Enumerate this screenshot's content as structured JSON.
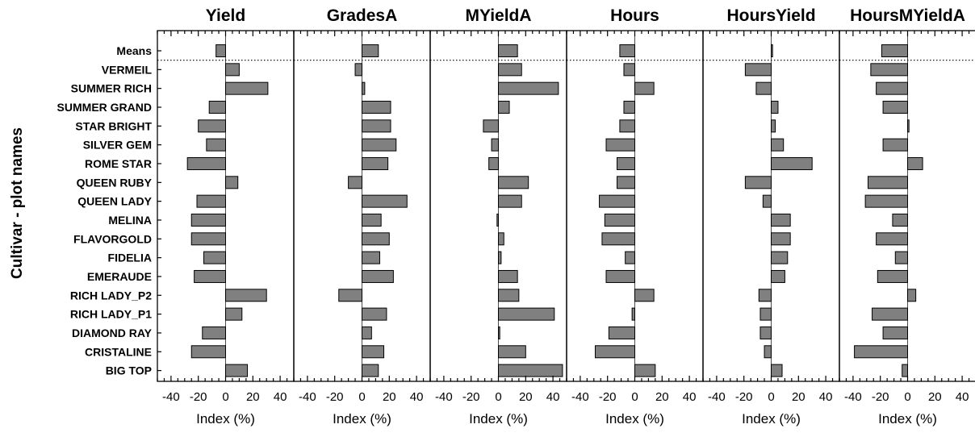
{
  "chart_data": {
    "type": "bar",
    "orientation": "horizontal",
    "ylabel": "Cultivar - plot names",
    "categories": [
      "Means",
      "VERMEIL",
      "SUMMER RICH",
      "SUMMER GRAND",
      "STAR BRIGHT",
      "SILVER GEM",
      "ROME STAR",
      "QUEEN RUBY",
      "QUEEN LADY",
      "MELINA",
      "FLAVORGOLD",
      "FIDELIA",
      "EMERAUDE",
      "RICH LADY_P2",
      "RICH LADY_P1",
      "DIAMOND RAY",
      "CRISTALINE",
      "BIG TOP"
    ],
    "xlim": [
      -50,
      50
    ],
    "xticks": [
      -40,
      -20,
      0,
      20,
      40
    ],
    "xtick_labels": [
      "-40",
      "-20",
      "0",
      "20",
      "40"
    ],
    "bar_color": "#808080",
    "panels": [
      {
        "title": "Yield",
        "xlabel": "Index (%)",
        "values": [
          -7,
          10,
          31,
          -12,
          -20,
          -14,
          -28,
          9,
          -21,
          -25,
          -25,
          -16,
          -23,
          30,
          12,
          -17,
          -25,
          16
        ]
      },
      {
        "title": "GradesA",
        "xlabel": "Index (%)",
        "values": [
          12,
          -5,
          2,
          21,
          21,
          25,
          19,
          -10,
          33,
          14,
          20,
          13,
          23,
          -17,
          18,
          7,
          16,
          12
        ]
      },
      {
        "title": "MYieldA",
        "xlabel": "Index (%)",
        "values": [
          14,
          17,
          44,
          8,
          -11,
          -5,
          -7,
          22,
          17,
          -1,
          4,
          2,
          14,
          15,
          41,
          1,
          20,
          47
        ]
      },
      {
        "title": "Hours",
        "xlabel": "Index (%)",
        "values": [
          -11,
          -8,
          14,
          -8,
          -11,
          -21,
          -13,
          -13,
          -26,
          -22,
          -24,
          -7,
          -21,
          14,
          -2,
          -19,
          -29,
          15
        ]
      },
      {
        "title": "HoursYield",
        "xlabel": "Index (%)",
        "values": [
          1,
          -19,
          -11,
          5,
          3,
          9,
          30,
          -19,
          -6,
          14,
          14,
          12,
          10,
          -9,
          -8,
          -8,
          -5,
          8
        ]
      },
      {
        "title": "HoursMYieldA",
        "xlabel": "Index (%)",
        "values": [
          -19,
          -27,
          -23,
          -18,
          1,
          -18,
          11,
          -29,
          -31,
          -11,
          -23,
          -9,
          -22,
          6,
          -26,
          -18,
          -39,
          -4
        ]
      }
    ]
  }
}
